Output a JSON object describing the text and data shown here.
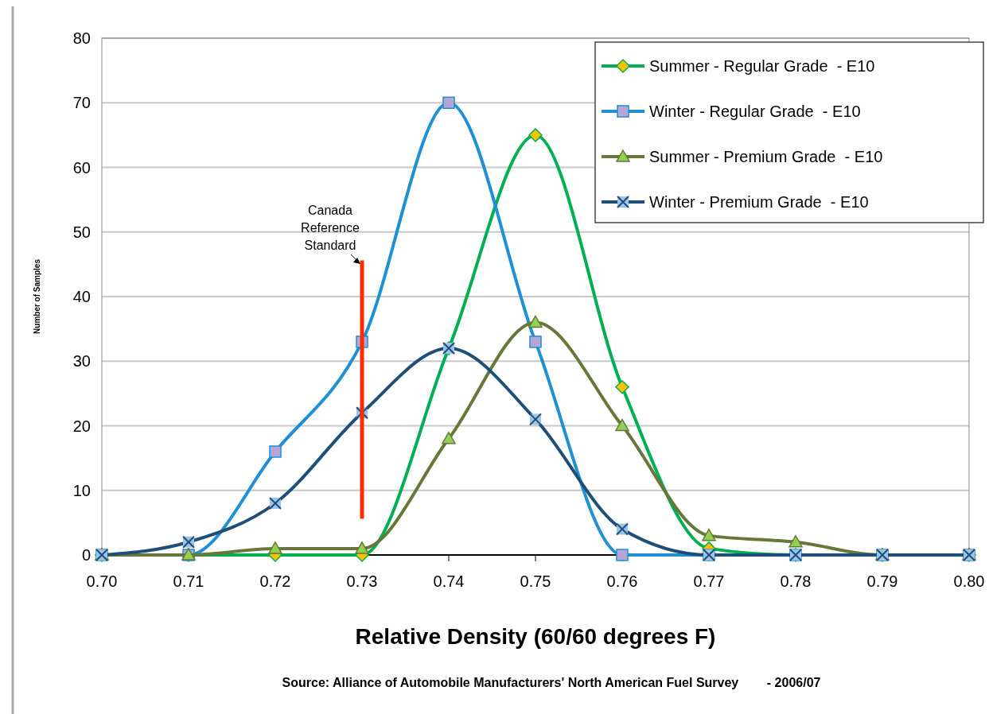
{
  "chart_data": {
    "type": "line",
    "xlabel": "Relative Density (60/60 degrees F)",
    "ylabel": "Number of Samples",
    "x": [
      0.7,
      0.71,
      0.72,
      0.73,
      0.74,
      0.75,
      0.76,
      0.77,
      0.78,
      0.79,
      0.8
    ],
    "series": [
      {
        "name": "Summer - Regular Grade  - E10",
        "color": "#00b050",
        "marker": "diamond",
        "values": [
          0,
          0,
          0,
          0,
          32,
          65,
          26,
          1,
          0,
          0,
          0
        ]
      },
      {
        "name": "Winter - Regular Grade  - E10",
        "color": "#1f8fd6",
        "marker": "square",
        "values": [
          0,
          0,
          16,
          33,
          70,
          33,
          0,
          0,
          0,
          0,
          0
        ]
      },
      {
        "name": "Summer - Premium Grade  - E10",
        "color": "#66773a",
        "marker": "triangle",
        "values": [
          0,
          0,
          1,
          1,
          18,
          36,
          20,
          3,
          2,
          0,
          0
        ]
      },
      {
        "name": "Winter - Premium Grade  - E10",
        "color": "#1f4e79",
        "marker": "cross",
        "values": [
          0,
          2,
          8,
          22,
          32,
          21,
          4,
          0,
          0,
          0,
          0
        ]
      }
    ],
    "xlim": [
      0.7,
      0.8
    ],
    "xticks": [
      {
        "value": 0.7,
        "label": "0.70"
      },
      {
        "value": 0.71,
        "label": "0.71"
      },
      {
        "value": 0.72,
        "label": "0.72"
      },
      {
        "value": 0.73,
        "label": "0.73"
      },
      {
        "value": 0.74,
        "label": "0.74"
      },
      {
        "value": 0.75,
        "label": "0.75"
      },
      {
        "value": 0.76,
        "label": "0.76"
      },
      {
        "value": 0.77,
        "label": "0.77"
      },
      {
        "value": 0.78,
        "label": "0.78"
      },
      {
        "value": 0.79,
        "label": "0.79"
      },
      {
        "value": 0.8,
        "label": "0.80"
      }
    ],
    "ylim": [
      0,
      80
    ],
    "yticks": [
      0,
      10,
      20,
      30,
      40,
      50,
      60,
      70,
      80
    ],
    "grid": "y",
    "legend": "top right",
    "ref_lines": [
      {
        "axis": "x",
        "value": 0.73,
        "label": "Canada Reference Standard",
        "color": "#ff2a00"
      }
    ],
    "annotations": [
      "Source: Alliance of Automobile Manufacturers' North American Fuel Survey        - 2006/07"
    ]
  }
}
